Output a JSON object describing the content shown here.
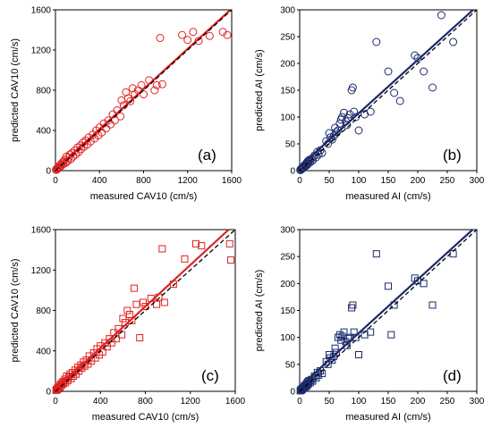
{
  "chart_data": [
    {
      "type": "scatter",
      "panel_label": "(a)",
      "xlabel": "measured CAV10 (cm/s)",
      "ylabel": "predicted CAV10 (cm/s)",
      "xlim": [
        0,
        1600
      ],
      "ylim": [
        0,
        1600
      ],
      "xticks": [
        0,
        400,
        800,
        1200,
        1600
      ],
      "yticks": [
        0,
        400,
        800,
        1200,
        1600
      ],
      "grid": false,
      "marker": "circle",
      "color": "#e02020",
      "fit_line_color": "#e02020",
      "reference_line": "1:1 dashed",
      "points": [
        [
          5,
          8
        ],
        [
          10,
          18
        ],
        [
          15,
          12
        ],
        [
          20,
          30
        ],
        [
          25,
          22
        ],
        [
          30,
          45
        ],
        [
          40,
          35
        ],
        [
          45,
          60
        ],
        [
          55,
          50
        ],
        [
          60,
          80
        ],
        [
          70,
          65
        ],
        [
          75,
          90
        ],
        [
          85,
          110
        ],
        [
          90,
          75
        ],
        [
          100,
          140
        ],
        [
          110,
          95
        ],
        [
          120,
          130
        ],
        [
          130,
          160
        ],
        [
          140,
          115
        ],
        [
          150,
          175
        ],
        [
          160,
          140
        ],
        [
          175,
          200
        ],
        [
          185,
          160
        ],
        [
          200,
          230
        ],
        [
          210,
          185
        ],
        [
          225,
          250
        ],
        [
          235,
          215
        ],
        [
          250,
          280
        ],
        [
          260,
          240
        ],
        [
          275,
          300
        ],
        [
          290,
          260
        ],
        [
          300,
          330
        ],
        [
          320,
          290
        ],
        [
          340,
          360
        ],
        [
          355,
          320
        ],
        [
          370,
          400
        ],
        [
          390,
          350
        ],
        [
          400,
          430
        ],
        [
          420,
          380
        ],
        [
          440,
          470
        ],
        [
          460,
          420
        ],
        [
          480,
          500
        ],
        [
          500,
          460
        ],
        [
          520,
          560
        ],
        [
          540,
          500
        ],
        [
          560,
          600
        ],
        [
          590,
          540
        ],
        [
          600,
          700
        ],
        [
          620,
          650
        ],
        [
          640,
          780
        ],
        [
          660,
          720
        ],
        [
          680,
          690
        ],
        [
          700,
          820
        ],
        [
          720,
          760
        ],
        [
          750,
          800
        ],
        [
          780,
          850
        ],
        [
          800,
          760
        ],
        [
          850,
          900
        ],
        [
          900,
          800
        ],
        [
          920,
          850
        ],
        [
          950,
          1320
        ],
        [
          970,
          860
        ],
        [
          1150,
          1350
        ],
        [
          1200,
          1300
        ],
        [
          1250,
          1380
        ],
        [
          1300,
          1290
        ],
        [
          1400,
          1340
        ],
        [
          1520,
          1380
        ],
        [
          1560,
          1350
        ]
      ]
    },
    {
      "type": "scatter",
      "panel_label": "(b)",
      "xlabel": "measured AI (cm/s)",
      "ylabel": "predicted AI (cm/s)",
      "xlim": [
        0,
        300
      ],
      "ylim": [
        0,
        300
      ],
      "xticks": [
        0,
        50,
        100,
        150,
        200,
        250,
        300
      ],
      "yticks": [
        0,
        50,
        100,
        150,
        200,
        250,
        300
      ],
      "grid": false,
      "marker": "circle",
      "color": "#1a2a6c",
      "fit_line_color": "#1a2a6c",
      "reference_line": "1:1 dashed",
      "points": [
        [
          1,
          1
        ],
        [
          2,
          3
        ],
        [
          3,
          2
        ],
        [
          4,
          5
        ],
        [
          5,
          4
        ],
        [
          6,
          7
        ],
        [
          7,
          6
        ],
        [
          8,
          10
        ],
        [
          9,
          8
        ],
        [
          10,
          12
        ],
        [
          11,
          9
        ],
        [
          12,
          15
        ],
        [
          13,
          11
        ],
        [
          14,
          18
        ],
        [
          15,
          14
        ],
        [
          16,
          20
        ],
        [
          18,
          16
        ],
        [
          20,
          22
        ],
        [
          22,
          19
        ],
        [
          25,
          28
        ],
        [
          28,
          25
        ],
        [
          30,
          35
        ],
        [
          32,
          30
        ],
        [
          35,
          38
        ],
        [
          38,
          33
        ],
        [
          45,
          55
        ],
        [
          48,
          50
        ],
        [
          50,
          70
        ],
        [
          52,
          62
        ],
        [
          55,
          58
        ],
        [
          58,
          65
        ],
        [
          60,
          80
        ],
        [
          62,
          72
        ],
        [
          65,
          75
        ],
        [
          68,
          88
        ],
        [
          70,
          95
        ],
        [
          72,
          100
        ],
        [
          75,
          108
        ],
        [
          78,
          92
        ],
        [
          80,
          85
        ],
        [
          82,
          98
        ],
        [
          85,
          105
        ],
        [
          88,
          150
        ],
        [
          90,
          155
        ],
        [
          92,
          110
        ],
        [
          95,
          100
        ],
        [
          100,
          75
        ],
        [
          110,
          105
        ],
        [
          120,
          110
        ],
        [
          130,
          240
        ],
        [
          150,
          185
        ],
        [
          160,
          145
        ],
        [
          170,
          130
        ],
        [
          195,
          215
        ],
        [
          200,
          210
        ],
        [
          210,
          185
        ],
        [
          225,
          155
        ],
        [
          240,
          290
        ],
        [
          260,
          240
        ]
      ]
    },
    {
      "type": "scatter",
      "panel_label": "(c)",
      "xlabel": "measured CAV10 (cm/s)",
      "ylabel": "predicted CAV10 (cm/s)",
      "xlim": [
        0,
        1600
      ],
      "ylim": [
        0,
        1600
      ],
      "xticks": [
        0,
        400,
        800,
        1200,
        1600
      ],
      "yticks": [
        0,
        400,
        800,
        1200,
        1600
      ],
      "grid": false,
      "marker": "square",
      "color": "#e02020",
      "fit_line_color": "#e02020",
      "reference_line": "1:1 dashed",
      "points": [
        [
          5,
          10
        ],
        [
          10,
          20
        ],
        [
          15,
          15
        ],
        [
          20,
          35
        ],
        [
          25,
          25
        ],
        [
          30,
          50
        ],
        [
          40,
          40
        ],
        [
          45,
          70
        ],
        [
          55,
          60
        ],
        [
          60,
          90
        ],
        [
          70,
          75
        ],
        [
          75,
          100
        ],
        [
          85,
          120
        ],
        [
          90,
          85
        ],
        [
          100,
          150
        ],
        [
          110,
          105
        ],
        [
          120,
          140
        ],
        [
          130,
          170
        ],
        [
          140,
          125
        ],
        [
          150,
          185
        ],
        [
          160,
          150
        ],
        [
          175,
          210
        ],
        [
          185,
          170
        ],
        [
          200,
          240
        ],
        [
          210,
          200
        ],
        [
          225,
          260
        ],
        [
          235,
          230
        ],
        [
          250,
          290
        ],
        [
          260,
          250
        ],
        [
          275,
          310
        ],
        [
          290,
          270
        ],
        [
          300,
          350
        ],
        [
          320,
          300
        ],
        [
          340,
          380
        ],
        [
          355,
          330
        ],
        [
          370,
          420
        ],
        [
          390,
          360
        ],
        [
          400,
          450
        ],
        [
          420,
          390
        ],
        [
          440,
          480
        ],
        [
          460,
          440
        ],
        [
          480,
          520
        ],
        [
          500,
          480
        ],
        [
          520,
          580
        ],
        [
          540,
          520
        ],
        [
          560,
          620
        ],
        [
          590,
          560
        ],
        [
          600,
          720
        ],
        [
          620,
          680
        ],
        [
          640,
          800
        ],
        [
          660,
          760
        ],
        [
          680,
          700
        ],
        [
          700,
          1020
        ],
        [
          720,
          860
        ],
        [
          750,
          530
        ],
        [
          780,
          880
        ],
        [
          800,
          840
        ],
        [
          850,
          920
        ],
        [
          900,
          860
        ],
        [
          920,
          930
        ],
        [
          950,
          1410
        ],
        [
          970,
          880
        ],
        [
          1050,
          1060
        ],
        [
          1150,
          1310
        ],
        [
          1250,
          1460
        ],
        [
          1300,
          1440
        ],
        [
          1550,
          1460
        ],
        [
          1560,
          1300
        ]
      ]
    },
    {
      "type": "scatter",
      "panel_label": "(d)",
      "xlabel": "measured AI (cm/s)",
      "ylabel": "predicted AI (cm/s)",
      "xlim": [
        0,
        300
      ],
      "ylim": [
        0,
        300
      ],
      "xticks": [
        0,
        50,
        100,
        150,
        200,
        250,
        300
      ],
      "yticks": [
        0,
        50,
        100,
        150,
        200,
        250,
        300
      ],
      "grid": false,
      "marker": "square",
      "color": "#1a2a6c",
      "fit_line_color": "#1a2a6c",
      "reference_line": "1:1 dashed",
      "points": [
        [
          1,
          1
        ],
        [
          2,
          3
        ],
        [
          3,
          2
        ],
        [
          4,
          5
        ],
        [
          5,
          4
        ],
        [
          6,
          7
        ],
        [
          7,
          6
        ],
        [
          8,
          10
        ],
        [
          9,
          8
        ],
        [
          10,
          12
        ],
        [
          11,
          9
        ],
        [
          12,
          15
        ],
        [
          13,
          11
        ],
        [
          14,
          18
        ],
        [
          15,
          14
        ],
        [
          16,
          20
        ],
        [
          18,
          16
        ],
        [
          20,
          22
        ],
        [
          22,
          19
        ],
        [
          25,
          28
        ],
        [
          28,
          25
        ],
        [
          30,
          35
        ],
        [
          32,
          30
        ],
        [
          35,
          38
        ],
        [
          38,
          33
        ],
        [
          45,
          55
        ],
        [
          48,
          50
        ],
        [
          50,
          68
        ],
        [
          52,
          62
        ],
        [
          55,
          58
        ],
        [
          58,
          65
        ],
        [
          60,
          80
        ],
        [
          62,
          72
        ],
        [
          65,
          100
        ],
        [
          68,
          105
        ],
        [
          70,
          95
        ],
        [
          72,
          102
        ],
        [
          75,
          110
        ],
        [
          78,
          92
        ],
        [
          80,
          85
        ],
        [
          82,
          98
        ],
        [
          85,
          100
        ],
        [
          88,
          155
        ],
        [
          90,
          160
        ],
        [
          92,
          110
        ],
        [
          95,
          100
        ],
        [
          100,
          68
        ],
        [
          110,
          105
        ],
        [
          120,
          110
        ],
        [
          130,
          255
        ],
        [
          150,
          195
        ],
        [
          155,
          105
        ],
        [
          160,
          160
        ],
        [
          195,
          210
        ],
        [
          200,
          205
        ],
        [
          210,
          200
        ],
        [
          225,
          160
        ],
        [
          260,
          255
        ]
      ]
    }
  ]
}
